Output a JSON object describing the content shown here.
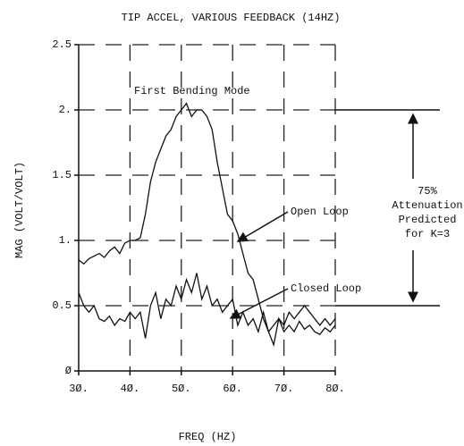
{
  "chart_data": {
    "type": "line",
    "title": "TIP ACCEL, VARIOUS FEEDBACK (14HZ)",
    "x_label": "FREQ (HZ)",
    "y_label": "MAG (VOLT/VOLT)",
    "x": [
      30,
      31,
      32,
      33,
      34,
      35,
      36,
      37,
      38,
      39,
      40,
      41,
      42,
      43,
      44,
      45,
      46,
      47,
      48,
      49,
      50,
      51,
      52,
      53,
      54,
      55,
      56,
      57,
      58,
      59,
      60,
      61,
      62,
      63,
      64,
      65,
      66,
      67,
      68,
      69,
      70,
      71,
      72,
      73,
      74,
      75,
      76,
      77,
      78,
      79,
      80
    ],
    "series": [
      {
        "name": "Open Loop",
        "color": "#111111",
        "values": [
          0.85,
          0.82,
          0.86,
          0.88,
          0.9,
          0.87,
          0.92,
          0.95,
          0.9,
          0.98,
          1.0,
          1.0,
          1.02,
          1.2,
          1.45,
          1.6,
          1.7,
          1.8,
          1.85,
          1.95,
          2.0,
          2.05,
          1.95,
          2.0,
          2.0,
          1.95,
          1.85,
          1.6,
          1.4,
          1.2,
          1.15,
          1.05,
          0.9,
          0.75,
          0.7,
          0.55,
          0.4,
          0.3,
          0.2,
          0.4,
          0.3,
          0.35,
          0.3,
          0.38,
          0.32,
          0.35,
          0.3,
          0.28,
          0.33,
          0.3,
          0.35
        ]
      },
      {
        "name": "Closed Loop",
        "color": "#111111",
        "values": [
          0.6,
          0.5,
          0.45,
          0.5,
          0.4,
          0.38,
          0.42,
          0.35,
          0.4,
          0.38,
          0.45,
          0.4,
          0.45,
          0.25,
          0.5,
          0.6,
          0.4,
          0.55,
          0.5,
          0.65,
          0.55,
          0.7,
          0.6,
          0.75,
          0.55,
          0.65,
          0.5,
          0.55,
          0.45,
          0.5,
          0.55,
          0.35,
          0.45,
          0.35,
          0.4,
          0.3,
          0.45,
          0.3,
          0.35,
          0.4,
          0.35,
          0.45,
          0.4,
          0.45,
          0.5,
          0.45,
          0.4,
          0.35,
          0.4,
          0.35,
          0.4
        ]
      }
    ],
    "xlim": [
      30,
      80
    ],
    "ylim": [
      0,
      2.5
    ],
    "xticks": [
      {
        "value": 30,
        "label": "3Ø."
      },
      {
        "value": 40,
        "label": "4Ø."
      },
      {
        "value": 50,
        "label": "5Ø."
      },
      {
        "value": 60,
        "label": "6Ø."
      },
      {
        "value": 70,
        "label": "7Ø."
      },
      {
        "value": 80,
        "label": "8Ø."
      }
    ],
    "yticks": [
      {
        "value": 0,
        "label": "Ø"
      },
      {
        "value": 0.5,
        "label": "0.5"
      },
      {
        "value": 1,
        "label": "1."
      },
      {
        "value": 1.5,
        "label": "1.5"
      },
      {
        "value": 2,
        "label": "2."
      },
      {
        "value": 2.5,
        "label": "2.5"
      }
    ],
    "grid": true,
    "annotations": {
      "mode": "First Bending Mode",
      "attenuation": [
        "75%",
        "Attenuation",
        "Predicted",
        "for K=3"
      ]
    }
  }
}
